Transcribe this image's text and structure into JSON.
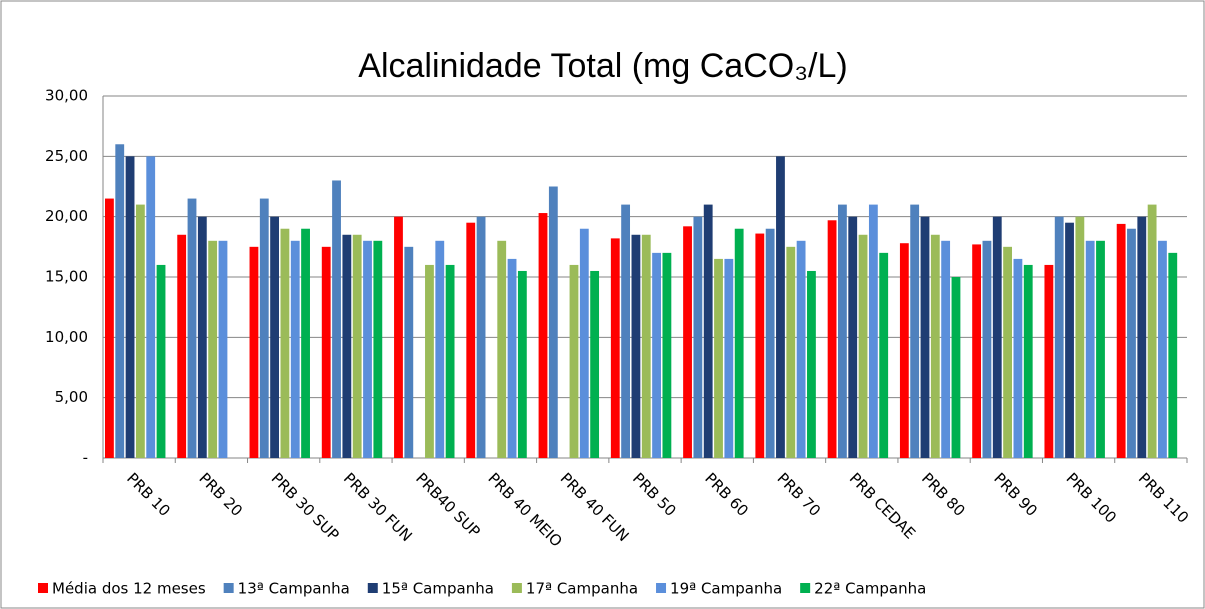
{
  "chart_data": {
    "type": "bar",
    "title": "Alcalinidade Total (mg CaCO₃/L)",
    "categories": [
      "PRB 10",
      "PRB 20",
      "PRB 30 SUP",
      "PRB 30 FUN",
      "PRB40 SUP",
      "PRB 40 MEIO",
      "PRB 40 FUN",
      "PRB 50",
      "PRB 60",
      "PRB 70",
      "PRB CEDAE",
      "PRB 80",
      "PRB 90",
      "PRB 100",
      "PRB 110"
    ],
    "series": [
      {
        "name": "Média dos 12 meses",
        "color": "#ff0000",
        "values": [
          21.5,
          18.5,
          17.5,
          17.5,
          20,
          19.5,
          20.3,
          18.2,
          19.2,
          18.6,
          19.7,
          17.8,
          17.7,
          16,
          19.4
        ]
      },
      {
        "name": "13ª Campanha",
        "color": "#4f81bd",
        "values": [
          26,
          21.5,
          21.5,
          23,
          17.5,
          20,
          22.5,
          21,
          20,
          19,
          21,
          21,
          18,
          20,
          19
        ]
      },
      {
        "name": "15ª Campanha",
        "color": "#1f3d73",
        "values": [
          25,
          20,
          20,
          18.5,
          null,
          null,
          null,
          18.5,
          21,
          25,
          20,
          20,
          20,
          19.5,
          20
        ]
      },
      {
        "name": "17ª Campanha",
        "color": "#9bbb59",
        "values": [
          21,
          18,
          19,
          18.5,
          16,
          18,
          16,
          18.5,
          16.5,
          17.5,
          18.5,
          18.5,
          17.5,
          20,
          21
        ]
      },
      {
        "name": "19ª Campanha",
        "color": "#5b8fdb",
        "values": [
          25,
          18,
          18,
          18,
          18,
          16.5,
          19,
          17,
          16.5,
          18,
          21,
          18,
          16.5,
          18,
          18
        ]
      },
      {
        "name": "22ª Campanha",
        "color": "#00b050",
        "values": [
          16,
          null,
          19,
          18,
          16,
          15.5,
          15.5,
          17,
          19,
          15.5,
          17,
          15,
          16,
          18,
          17
        ]
      }
    ],
    "ylim": [
      0,
      30
    ],
    "yticks": [
      {
        "value": 0,
        "label": "-"
      },
      {
        "value": 5,
        "label": "5,00"
      },
      {
        "value": 10,
        "label": "10,00"
      },
      {
        "value": 15,
        "label": "15,00"
      },
      {
        "value": 20,
        "label": "20,00"
      },
      {
        "value": 25,
        "label": "25,00"
      },
      {
        "value": 30,
        "label": "30,00"
      }
    ],
    "grid": true,
    "legend": "bottom"
  }
}
